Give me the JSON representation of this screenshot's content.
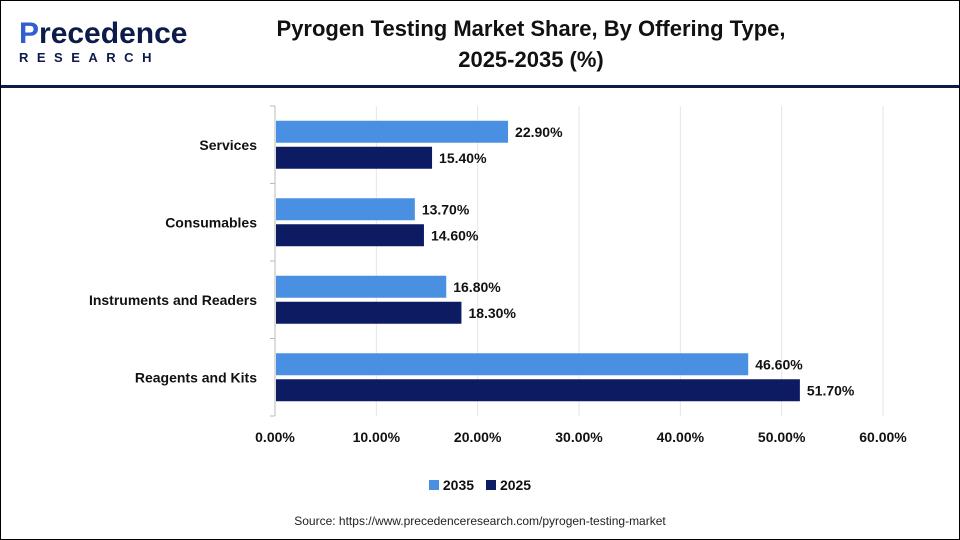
{
  "logo": {
    "line1": "Precedence",
    "line2": "RESEARCH"
  },
  "chart_data": {
    "type": "bar",
    "orientation": "horizontal",
    "title": "Pyrogen Testing Market Share, By Offering Type, 2025-2035 (%)",
    "title_lines": [
      "Pyrogen Testing Market Share, By Offering Type,",
      "2025-2035 (%)"
    ],
    "categories": [
      "Services",
      "Consumables",
      "Instruments and Readers",
      "Reagents and Kits"
    ],
    "series": [
      {
        "name": "2035",
        "color": "#4a90e2",
        "values": [
          22.9,
          13.7,
          16.8,
          46.6
        ],
        "labels": [
          "22.90%",
          "13.70%",
          "16.80%",
          "46.60%"
        ]
      },
      {
        "name": "2025",
        "color": "#0d1b63",
        "values": [
          15.4,
          14.6,
          18.3,
          51.7
        ],
        "labels": [
          "15.40%",
          "14.60%",
          "18.30%",
          "51.70%"
        ]
      }
    ],
    "xlim": [
      0,
      60
    ],
    "xticks": [
      "0.00%",
      "10.00%",
      "20.00%",
      "30.00%",
      "40.00%",
      "50.00%",
      "60.00%"
    ],
    "grid": true,
    "legend_placement": "bottom"
  },
  "source": "Source: https://www.precedenceresearch.com/pyrogen-testing-market"
}
